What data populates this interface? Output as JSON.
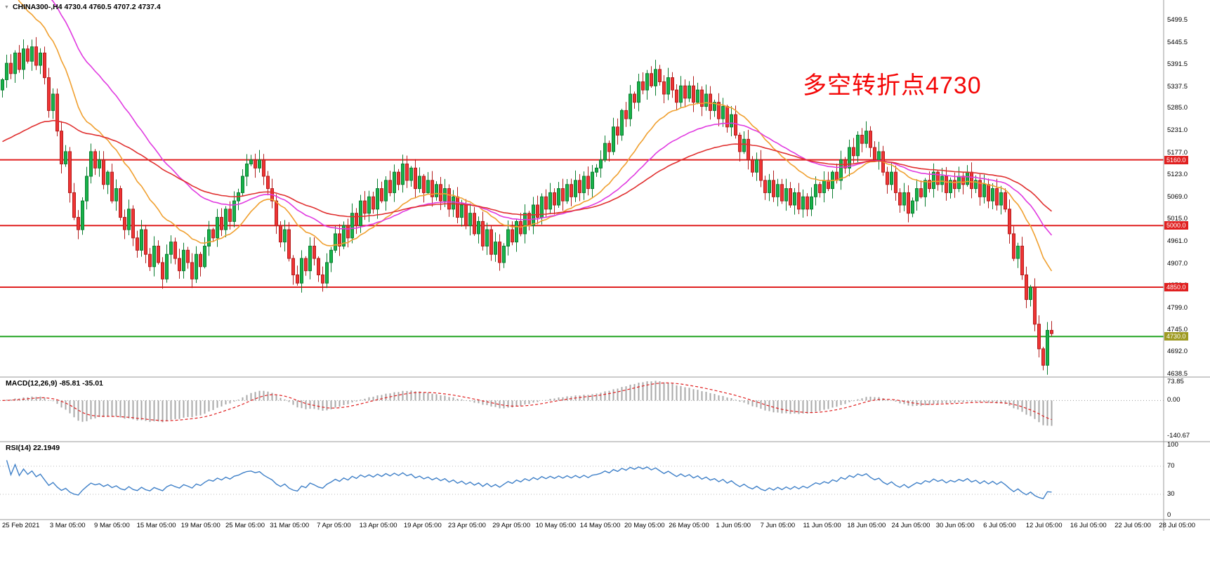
{
  "window": {
    "dropdown_icon": "▼",
    "title": "CHINA300-,H4 4730.4 4760.5 4707.2 4737.4"
  },
  "annotation": {
    "text": "多空转折点4730",
    "color": "#f40606"
  },
  "indicator_labels": {
    "macd": "MACD(12,26,9) -85.81 -35.01",
    "rsi": "RSI(14) 22.1949"
  },
  "colors": {
    "bull": "#18b34a",
    "bull_border": "#0b7d30",
    "bear": "#ef3434",
    "bear_border": "#b31d1d",
    "background": "#ffffff",
    "separator": "#9a9a9a",
    "axis_text": "#000000"
  },
  "chart_data": {
    "type": "candlestick",
    "symbol": "CHINA300-",
    "timeframe": "H4",
    "current_bar": {
      "open": 4730.4,
      "high": 4760.5,
      "low": 4707.2,
      "close": 4737.4
    },
    "price_axis": {
      "range": [
        4633,
        5549
      ],
      "tick_labels": [
        "5499.5",
        "5445.5",
        "5391.5",
        "5337.5",
        "5285.0",
        "5231.0",
        "5177.0",
        "5123.0",
        "5069.0",
        "5015.0",
        "4961.0",
        "4907.0",
        "4853.0",
        "4799.0",
        "4745.0",
        "4692.0",
        "4638.5"
      ],
      "tick_values": [
        5499.5,
        5445.5,
        5391.5,
        5337.5,
        5285.0,
        5231.0,
        5177.0,
        5123.0,
        5069.0,
        5015.0,
        4961.0,
        4907.0,
        4853.0,
        4799.0,
        4745.0,
        4692.0,
        4638.5
      ]
    },
    "time_axis": {
      "labels": [
        "25 Feb 2021",
        "3 Mar 05:00",
        "9 Mar 05:00",
        "15 Mar 05:00",
        "19 Mar 05:00",
        "25 Mar 05:00",
        "31 Mar 05:00",
        "7 Apr 05:00",
        "13 Apr 05:00",
        "19 Apr 05:00",
        "23 Apr 05:00",
        "29 Apr 05:00",
        "10 May 05:00",
        "14 May 05:00",
        "20 May 05:00",
        "26 May 05:00",
        "1 Jun 05:00",
        "7 Jun 05:00",
        "11 Jun 05:00",
        "18 Jun 05:00",
        "24 Jun 05:00",
        "30 Jun 05:00",
        "6 Jul 05:00",
        "12 Jul 05:00",
        "16 Jul 05:00",
        "22 Jul 05:00",
        "28 Jul 05:00"
      ]
    },
    "closes": [
      5355,
      5395,
      5370,
      5420,
      5380,
      5430,
      5400,
      5435,
      5390,
      5420,
      5360,
      5280,
      5320,
      5230,
      5150,
      5180,
      5080,
      5020,
      4990,
      5060,
      5120,
      5180,
      5140,
      5160,
      5100,
      5130,
      5060,
      5090,
      5020,
      4990,
      5040,
      4970,
      4940,
      4990,
      4930,
      4900,
      4950,
      4910,
      4870,
      4930,
      4960,
      4920,
      4890,
      4940,
      4910,
      4870,
      4930,
      4900,
      4950,
      4990,
      4970,
      5020,
      4990,
      5040,
      5010,
      5060,
      5080,
      5120,
      5150,
      5160,
      5140,
      5160,
      5120,
      5090,
      5060,
      5000,
      4960,
      4990,
      4920,
      4880,
      4860,
      4920,
      4890,
      4950,
      4920,
      4880,
      4860,
      4910,
      4940,
      4980,
      4950,
      5000,
      4970,
      5030,
      5000,
      5060,
      5030,
      5070,
      5040,
      5090,
      5060,
      5110,
      5080,
      5130,
      5100,
      5150,
      5110,
      5140,
      5090,
      5120,
      5080,
      5110,
      5070,
      5100,
      5060,
      5090,
      5040,
      5070,
      5020,
      5050,
      5000,
      5030,
      4980,
      5010,
      4950,
      4990,
      4930,
      4960,
      4910,
      4950,
      4990,
      4960,
      5010,
      4980,
      5030,
      5000,
      5050,
      5020,
      5070,
      5040,
      5080,
      5050,
      5090,
      5060,
      5100,
      5070,
      5110,
      5080,
      5120,
      5090,
      5130,
      5140,
      5160,
      5200,
      5180,
      5240,
      5220,
      5280,
      5260,
      5320,
      5300,
      5350,
      5330,
      5370,
      5340,
      5380,
      5350,
      5320,
      5360,
      5330,
      5300,
      5340,
      5310,
      5340,
      5300,
      5330,
      5290,
      5320,
      5280,
      5300,
      5260,
      5290,
      5240,
      5270,
      5220,
      5180,
      5210,
      5160,
      5130,
      5160,
      5110,
      5080,
      5110,
      5070,
      5100,
      5060,
      5090,
      5050,
      5080,
      5040,
      5070,
      5040,
      5070,
      5100,
      5080,
      5110,
      5090,
      5130,
      5110,
      5160,
      5140,
      5190,
      5170,
      5220,
      5200,
      5230,
      5190,
      5160,
      5180,
      5130,
      5100,
      5130,
      5080,
      5050,
      5080,
      5030,
      5060,
      5090,
      5070,
      5110,
      5090,
      5130,
      5100,
      5120,
      5080,
      5110,
      5090,
      5120,
      5100,
      5130,
      5090,
      5110,
      5070,
      5100,
      5060,
      5090,
      5050,
      5080,
      5040,
      4980,
      4920,
      4950,
      4880,
      4820,
      4850,
      4760,
      4700,
      4660,
      4745,
      4737
    ],
    "horizontal_lines": [
      {
        "value": 5160,
        "label": "5160.0",
        "line_color": "#e02020",
        "tag_bg": "#e02020"
      },
      {
        "value": 5000,
        "label": "5000.0",
        "line_color": "#e02020",
        "tag_bg": "#e02020"
      },
      {
        "value": 4850,
        "label": "4850.0",
        "line_color": "#e02020",
        "tag_bg": "#e02020"
      },
      {
        "value": 4730,
        "label": "4730.0",
        "line_color": "#22a422",
        "tag_bg": "#9e9a22"
      }
    ],
    "overlays": [
      {
        "name": "ma-fast",
        "color": "#f0a030",
        "period": 20,
        "seed": 5650
      },
      {
        "name": "ma-mid",
        "color": "#e03ae0",
        "period": 40,
        "seed": 5700
      },
      {
        "name": "ma-slow",
        "color": "#e03030",
        "period": 70,
        "seed": 5200
      }
    ],
    "macd": {
      "params": [
        12,
        26,
        9
      ],
      "main": -85.81,
      "signal": -35.01,
      "tick_labels": [
        "73.85",
        "0.00",
        "-140.67"
      ],
      "tick_values": [
        73.85,
        0,
        -140.67
      ],
      "range": [
        -160,
        90
      ],
      "hist_color": "#a8a8a8",
      "signal_color": "#e02020"
    },
    "rsi": {
      "period": 14,
      "value": 22.1949,
      "tick_labels": [
        "100",
        "70",
        "30",
        "0"
      ],
      "tick_values": [
        100,
        70,
        30,
        0
      ],
      "levels": [
        70,
        30
      ],
      "range": [
        -4,
        104
      ],
      "line_color": "#3f80c8"
    }
  }
}
